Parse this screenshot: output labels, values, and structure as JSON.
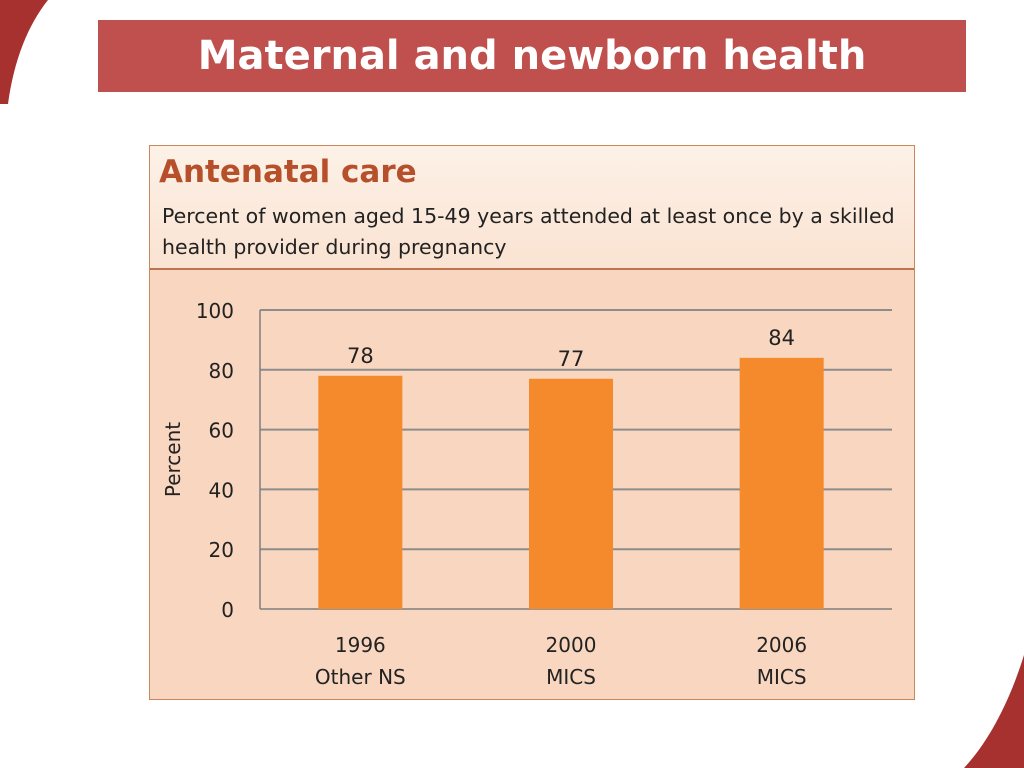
{
  "slide": {
    "title": "Maternal and newborn health"
  },
  "card": {
    "title": "Antenatal care",
    "subtitle": "Percent of women aged 15-49 years attended at least once by a skilled health provider during pregnancy"
  },
  "colors": {
    "banner": "#c0504d",
    "bar": "#f48a2c",
    "panel": "#f9d6bf",
    "card_title": "#b5502a",
    "gridline": "#8c8c8c",
    "decoration": "#a6312f"
  },
  "chart_data": {
    "type": "bar",
    "categories": [
      [
        "1996",
        "Other NS"
      ],
      [
        "2000",
        "MICS"
      ],
      [
        "2006",
        "MICS"
      ]
    ],
    "values": [
      78,
      77,
      84
    ],
    "data_labels": [
      "78",
      "77",
      "84"
    ],
    "ylabel": "Percent",
    "xlabel": "",
    "ylim": [
      0,
      100
    ],
    "yticks": [
      0,
      20,
      40,
      60,
      80,
      100
    ],
    "grid": true,
    "legend": "none"
  }
}
